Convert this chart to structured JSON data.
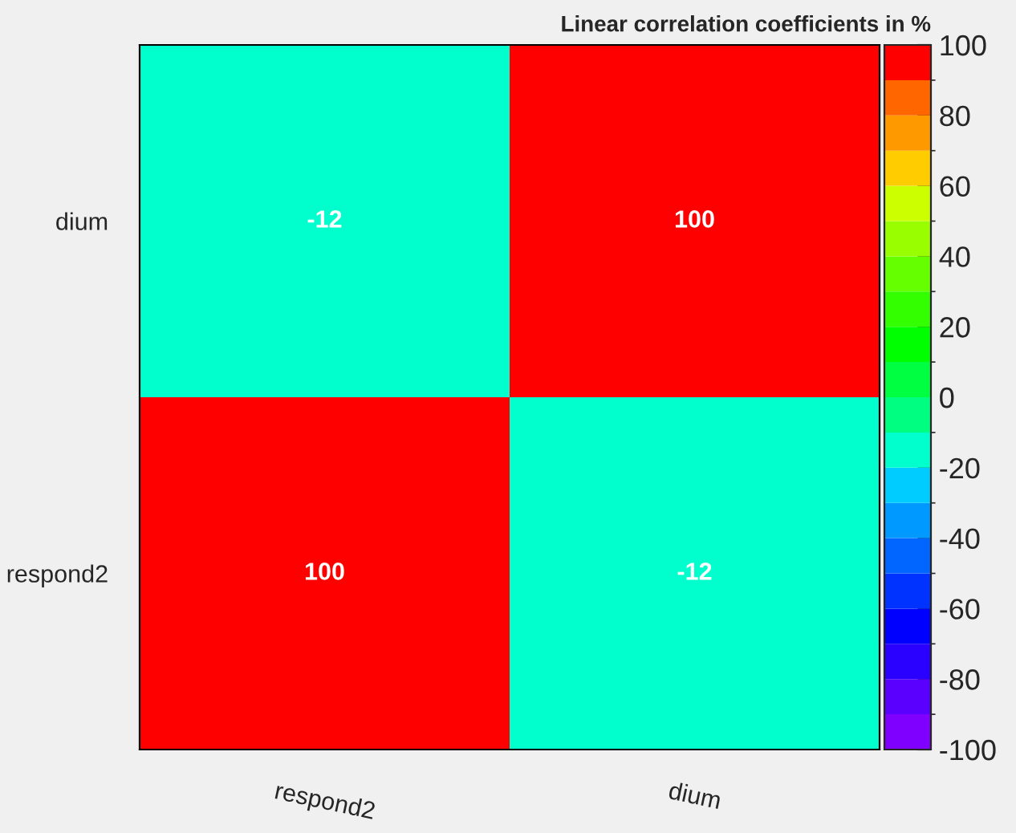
{
  "chart_data": {
    "type": "heatmap",
    "title": "Linear correlation coefficients in %",
    "categories": [
      "respond2",
      "dium"
    ],
    "y_categories": [
      "dium",
      "respond2"
    ],
    "cells": [
      [
        -12,
        100
      ],
      [
        100,
        -12
      ]
    ],
    "data_labels": true,
    "clim": [
      -100,
      100
    ],
    "cticks": [
      -100,
      -80,
      -60,
      -40,
      -20,
      0,
      20,
      40,
      60,
      80,
      100
    ]
  }
}
